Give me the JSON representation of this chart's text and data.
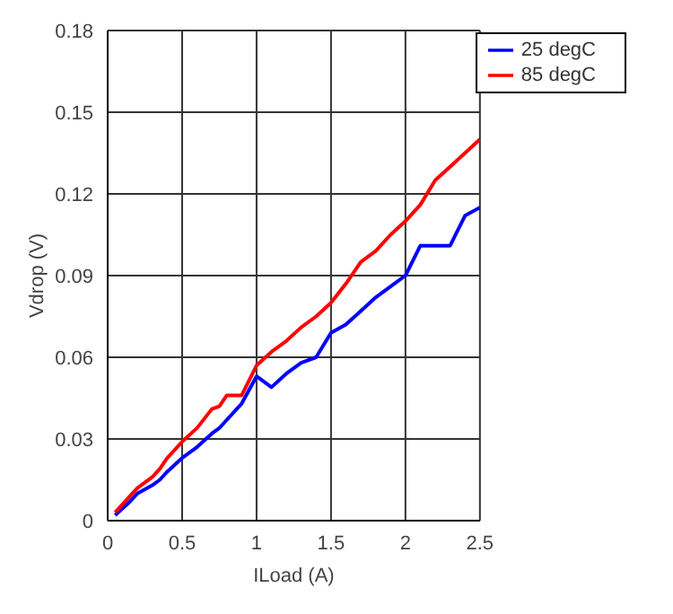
{
  "chart_data": {
    "type": "line",
    "xlabel": "ILoad (A)",
    "ylabel": "Vdrop (V)",
    "x": [
      0.05,
      0.15,
      0.2,
      0.3,
      0.35,
      0.4,
      0.5,
      0.6,
      0.7,
      0.75,
      0.8,
      0.9,
      1.0,
      1.1,
      1.2,
      1.3,
      1.4,
      1.5,
      1.6,
      1.7,
      1.8,
      1.9,
      2.0,
      2.1,
      2.2,
      2.3,
      2.4,
      2.5
    ],
    "series": [
      {
        "name": "25 degC",
        "color": "#0000ff",
        "values": [
          0.002,
          0.007,
          0.01,
          0.013,
          0.015,
          0.018,
          0.023,
          0.027,
          0.032,
          0.034,
          0.037,
          0.043,
          0.053,
          0.049,
          0.054,
          0.058,
          0.06,
          0.069,
          0.072,
          0.077,
          0.082,
          0.086,
          0.09,
          0.101,
          0.101,
          0.101,
          0.112,
          0.115
        ]
      },
      {
        "name": "85 degC",
        "color": "#ff0000",
        "values": [
          0.003,
          0.009,
          0.012,
          0.016,
          0.019,
          0.023,
          0.029,
          0.034,
          0.041,
          0.042,
          0.046,
          0.046,
          0.057,
          0.062,
          0.066,
          0.071,
          0.075,
          0.08,
          0.087,
          0.095,
          0.099,
          0.105,
          0.11,
          0.116,
          0.125,
          0.13,
          0.135,
          0.14
        ]
      }
    ],
    "xlim": [
      0,
      2.5
    ],
    "xticks": [
      0,
      0.5,
      1,
      1.5,
      2,
      2.5
    ],
    "ylim": [
      0,
      0.18
    ],
    "yticks": [
      0,
      0.03,
      0.06,
      0.09,
      0.12,
      0.15,
      0.18
    ],
    "grid": true,
    "legend": "top right",
    "marker": "none",
    "line_style": "solid"
  }
}
